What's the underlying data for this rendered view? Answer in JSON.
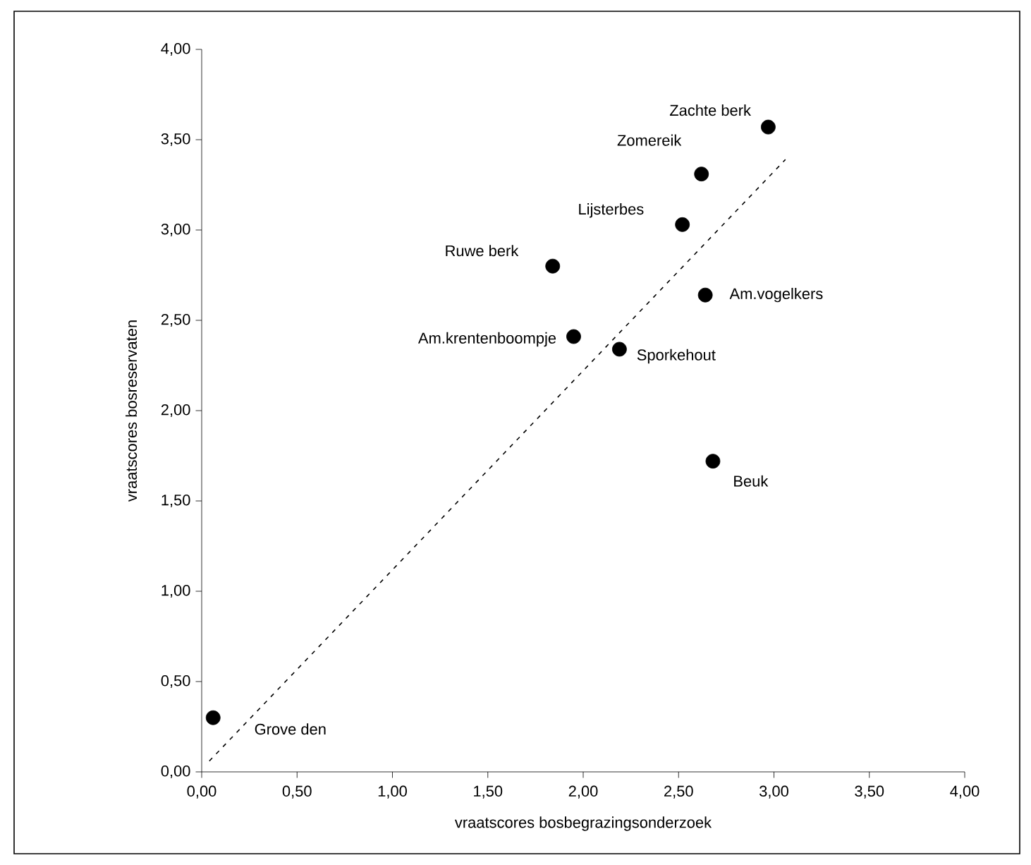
{
  "chart_data": {
    "type": "scatter",
    "xlabel": "vraatscores bosbegrazingsonderzoek",
    "ylabel": "vraatscores bosreservaten",
    "xlim": [
      0,
      4
    ],
    "ylim": [
      0,
      4
    ],
    "xticks": [
      {
        "value": 0,
        "label": "0,00"
      },
      {
        "value": 0.5,
        "label": "0,50"
      },
      {
        "value": 1,
        "label": "1,00"
      },
      {
        "value": 1.5,
        "label": "1,50"
      },
      {
        "value": 2,
        "label": "2,00"
      },
      {
        "value": 2.5,
        "label": "2,50"
      },
      {
        "value": 3,
        "label": "3,00"
      },
      {
        "value": 3.5,
        "label": "3,50"
      },
      {
        "value": 4,
        "label": "4,00"
      }
    ],
    "yticks": [
      {
        "value": 0,
        "label": "0,00"
      },
      {
        "value": 0.5,
        "label": "0,50"
      },
      {
        "value": 1,
        "label": "1,00"
      },
      {
        "value": 1.5,
        "label": "1,50"
      },
      {
        "value": 2,
        "label": "2,00"
      },
      {
        "value": 2.5,
        "label": "2,50"
      },
      {
        "value": 3,
        "label": "3,00"
      },
      {
        "value": 3.5,
        "label": "3,50"
      },
      {
        "value": 4,
        "label": "4,00"
      }
    ],
    "grid": false,
    "series": [
      {
        "color": "#000000",
        "marker": "circle",
        "x": [
          2.97,
          2.62,
          2.52,
          1.84,
          2.64,
          1.95,
          2.19,
          2.68,
          0.06
        ],
        "values": [
          3.57,
          3.31,
          3.03,
          2.8,
          2.64,
          2.41,
          2.34,
          1.72,
          0.3
        ]
      },
      {
        "type": "line",
        "color": "#000000",
        "marker": "none",
        "line_style": "dashed",
        "x": [
          0.04,
          3.06
        ],
        "values": [
          0.06,
          3.39
        ]
      }
    ],
    "annotations": [
      {
        "text": "Zachte berk",
        "x": 2.97,
        "y": 3.57
      },
      {
        "text": "Zomereik",
        "x": 2.62,
        "y": 3.31
      },
      {
        "text": "Lijsterbes",
        "x": 2.52,
        "y": 3.03
      },
      {
        "text": "Ruwe berk",
        "x": 1.84,
        "y": 2.8
      },
      {
        "text": "Am.vogelkers",
        "x": 2.64,
        "y": 2.64
      },
      {
        "text": "Am.krentenboompje",
        "x": 1.95,
        "y": 2.41
      },
      {
        "text": "Sporkehout",
        "x": 2.19,
        "y": 2.34
      },
      {
        "text": "Beuk",
        "x": 2.68,
        "y": 1.72
      },
      {
        "text": "Grove den",
        "x": 0.06,
        "y": 0.3
      }
    ]
  }
}
